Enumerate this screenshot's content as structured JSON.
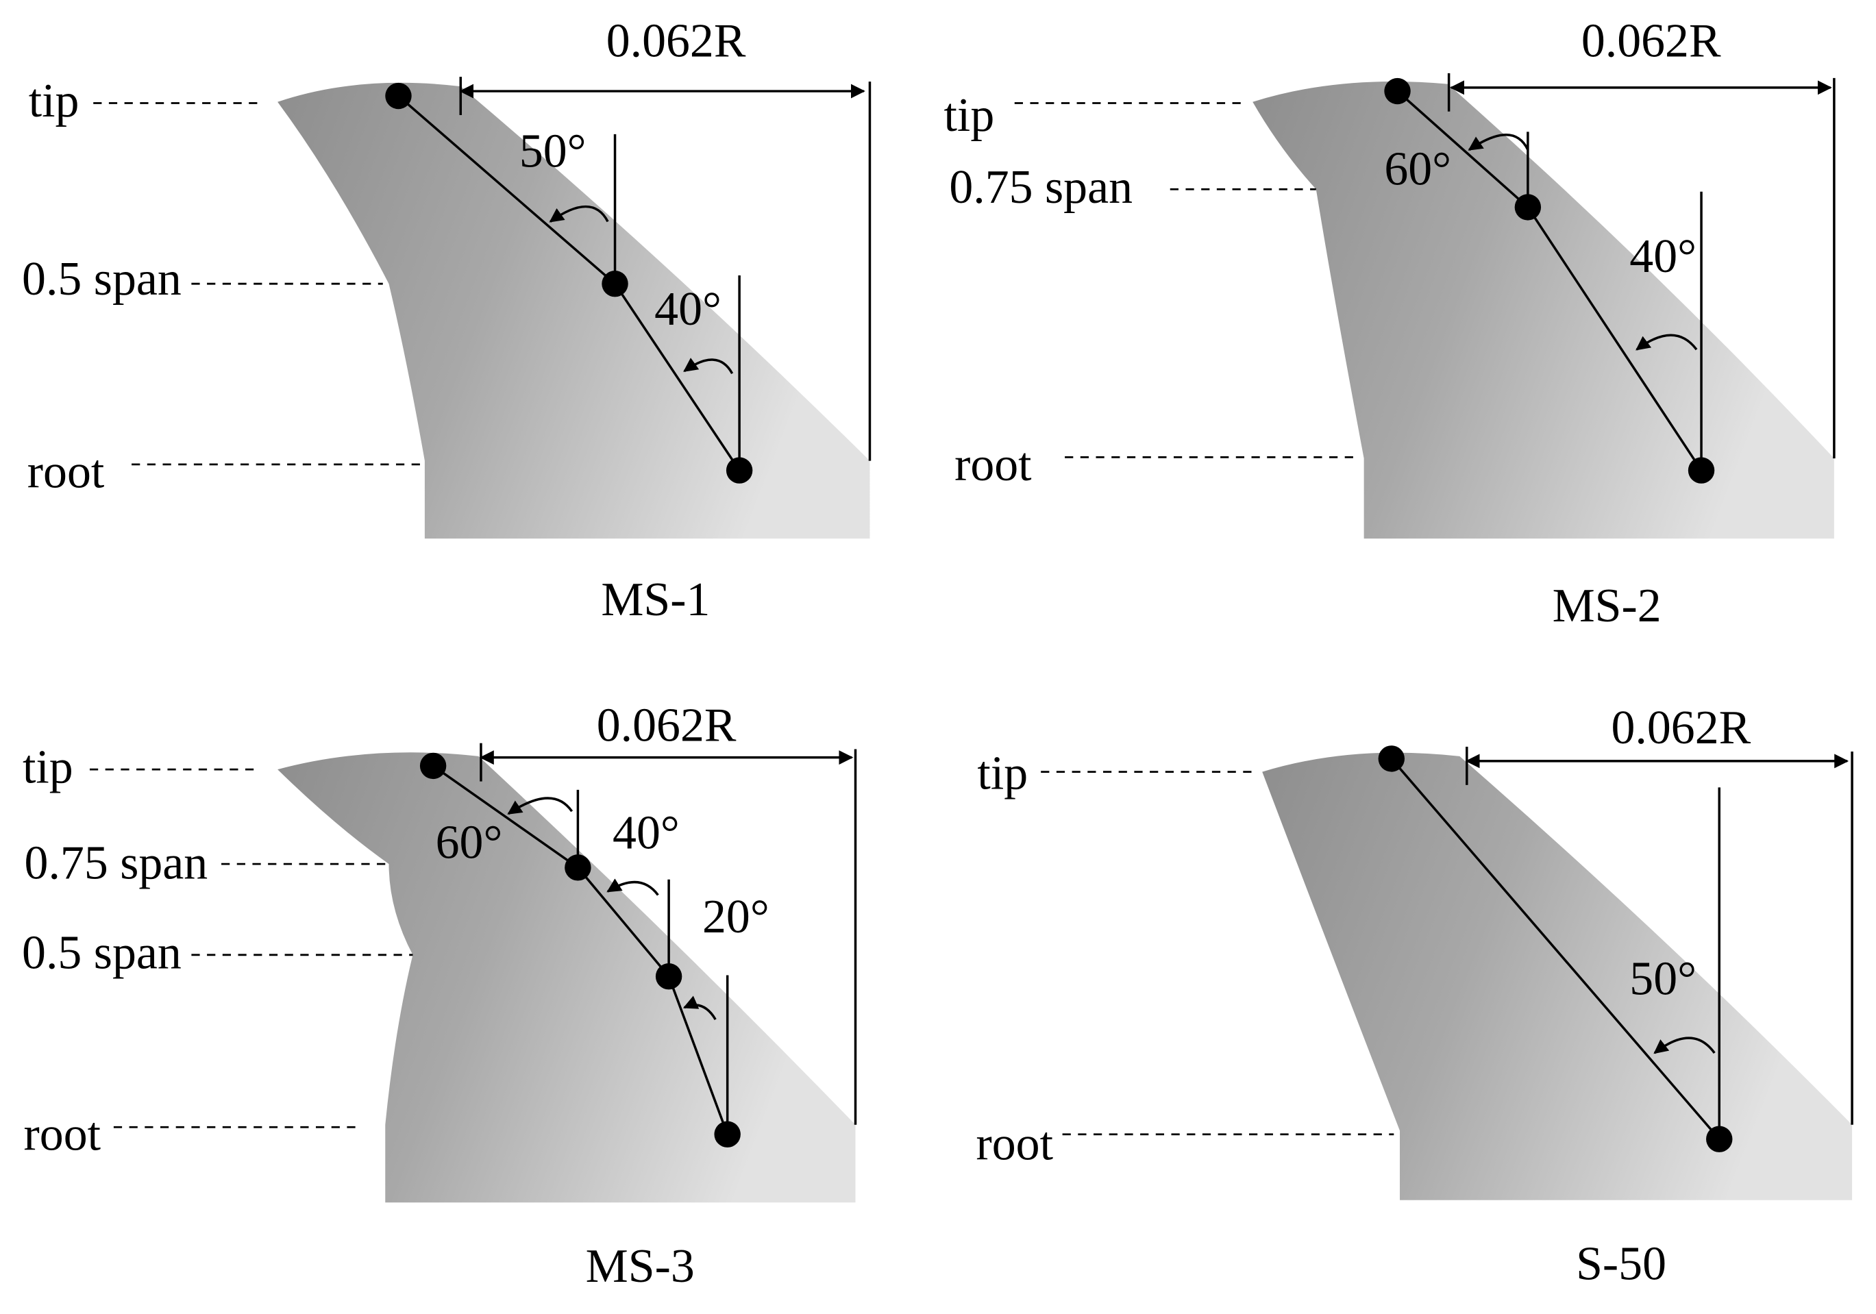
{
  "panels": [
    {
      "name": "MS-1",
      "dimension": "0.062R",
      "stations": [
        "tip",
        "0.5 span",
        "root"
      ],
      "angles": [
        "50°",
        "40°"
      ]
    },
    {
      "name": "MS-2",
      "dimension": "0.062R",
      "stations": [
        "tip",
        "0.75 span",
        "root"
      ],
      "angles": [
        "60°",
        "40°"
      ]
    },
    {
      "name": "MS-3",
      "dimension": "0.062R",
      "stations": [
        "tip",
        "0.75 span",
        "0.5 span",
        "root"
      ],
      "angles": [
        "60°",
        "40°",
        "20°"
      ]
    },
    {
      "name": "S-50",
      "dimension": "0.062R",
      "stations": [
        "tip",
        "root"
      ],
      "angles": [
        "50°"
      ]
    }
  ]
}
